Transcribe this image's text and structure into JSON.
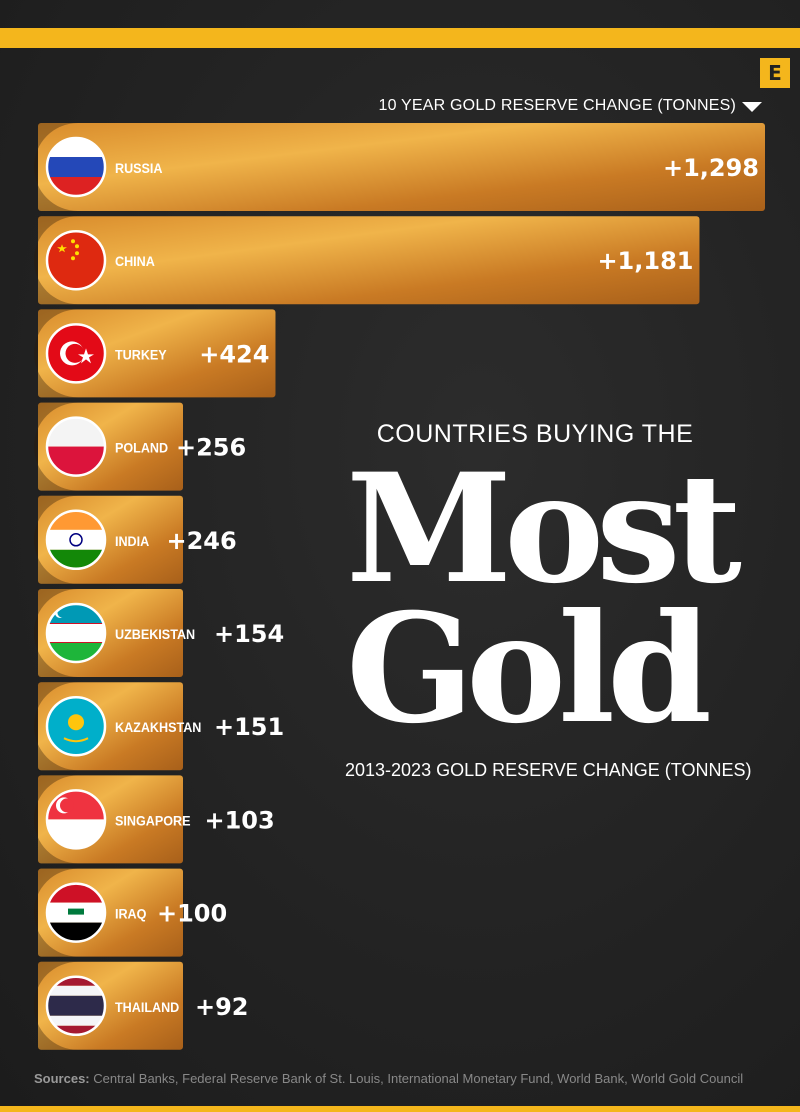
{
  "logo": {
    "letter": "E"
  },
  "header": {
    "axis_label": "10 YEAR GOLD RESERVE CHANGE (TONNES)"
  },
  "title": {
    "top": "COUNTRIES BUYING THE",
    "main_line1": "Most",
    "main_line2": "Gold",
    "subtitle": "2013-2023 GOLD RESERVE CHANGE (TONNES)"
  },
  "sources": {
    "label": "Sources:",
    "text": "Central Banks, Federal Reserve Bank of St. Louis, International Monetary Fund, World Bank, World Gold Council"
  },
  "colors": {
    "accent": "#f4b61c",
    "gold_light": "#e6a43a",
    "gold_dark": "#b0641a",
    "background": "#222222"
  },
  "chart_data": {
    "type": "bar",
    "orientation": "horizontal",
    "categories": [
      "RUSSIA",
      "CHINA",
      "TURKEY",
      "POLAND",
      "INDIA",
      "UZBEKISTAN",
      "KAZAKHSTAN",
      "SINGAPORE",
      "IRAQ",
      "THAILAND"
    ],
    "values": [
      1298,
      1181,
      424,
      256,
      246,
      154,
      151,
      103,
      100,
      92
    ],
    "value_labels": [
      "+1,298",
      "+1,181",
      "+424",
      "+256",
      "+246",
      "+154",
      "+151",
      "+103",
      "+100",
      "+92"
    ],
    "flags": [
      "russia-flag",
      "china-flag",
      "turkey-flag",
      "poland-flag",
      "india-flag",
      "uzbekistan-flag",
      "kazakhstan-flag",
      "singapore-flag",
      "iraq-flag",
      "thailand-flag"
    ],
    "title": "COUNTRIES BUYING THE Most Gold",
    "subtitle": "2013-2023 GOLD RESERVE CHANGE (TONNES)",
    "xlabel": "10 YEAR GOLD RESERVE CHANGE (TONNES)",
    "ylabel": ""
  }
}
